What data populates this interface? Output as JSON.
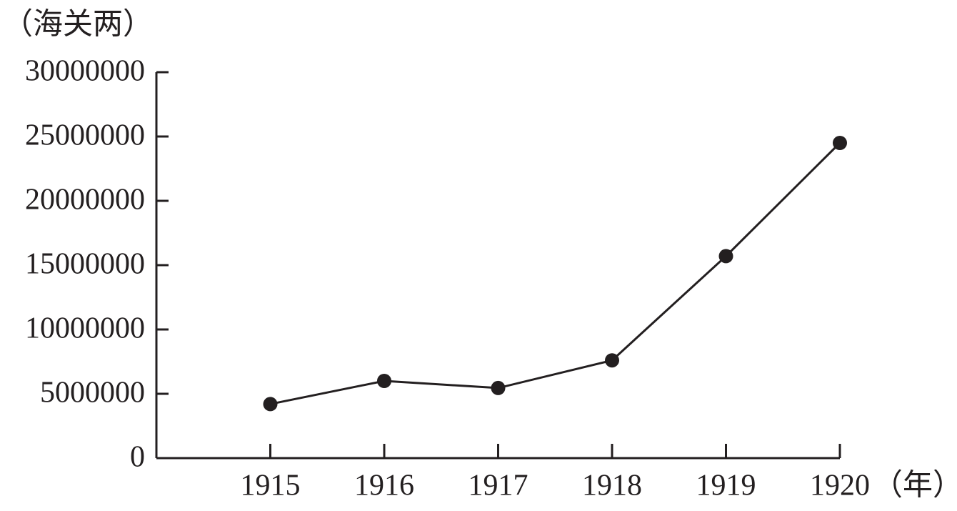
{
  "chart_data": {
    "type": "line",
    "y_label": "（海关两）",
    "x_label": "（年）",
    "x": [
      1915,
      1916,
      1917,
      1918,
      1919,
      1920
    ],
    "series": [
      {
        "color": "#231f20",
        "values": [
          4200000,
          6000000,
          5450000,
          7600000,
          15700000,
          24500000
        ]
      }
    ],
    "xlim": [
      1914,
      1920
    ],
    "xticks": [
      1915,
      1916,
      1917,
      1918,
      1919,
      1920
    ],
    "ylim": [
      0,
      30000000
    ],
    "yticks": [
      0,
      5000000,
      10000000,
      15000000,
      20000000,
      25000000,
      30000000
    ],
    "grid": false
  }
}
